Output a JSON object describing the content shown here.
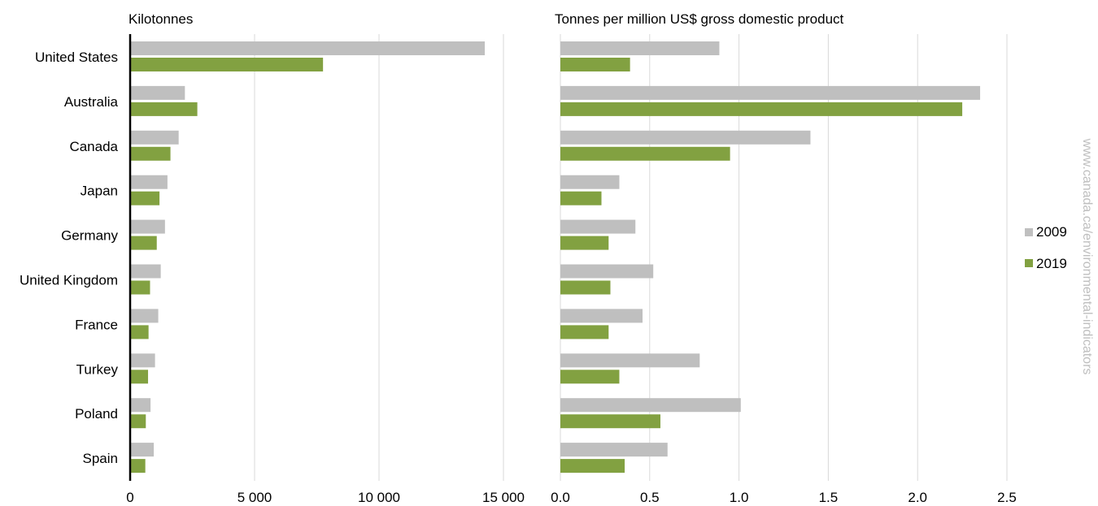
{
  "chart_data": [
    {
      "type": "bar",
      "orientation": "horizontal",
      "title": "Kilotonnes",
      "categories": [
        "United States",
        "Australia",
        "Canada",
        "Japan",
        "Germany",
        "United Kingdom",
        "France",
        "Turkey",
        "Poland",
        "Spain"
      ],
      "series": [
        {
          "name": "2009",
          "values": [
            14250,
            2200,
            1950,
            1500,
            1400,
            1230,
            1130,
            1000,
            820,
            950
          ]
        },
        {
          "name": "2019",
          "values": [
            7750,
            2700,
            1620,
            1180,
            1070,
            800,
            740,
            720,
            630,
            610
          ]
        }
      ],
      "xlim": [
        0,
        15000
      ],
      "xticks": [
        "0",
        "5 000",
        "10 000",
        "15 000"
      ],
      "xtick_values": [
        0,
        5000,
        10000,
        15000
      ],
      "grid": "vertical"
    },
    {
      "type": "bar",
      "orientation": "horizontal",
      "title": "Tonnes per million US$ gross domestic product",
      "categories": [
        "United States",
        "Australia",
        "Canada",
        "Japan",
        "Germany",
        "United Kingdom",
        "France",
        "Turkey",
        "Poland",
        "Spain"
      ],
      "series": [
        {
          "name": "2009",
          "values": [
            0.89,
            2.35,
            1.4,
            0.33,
            0.42,
            0.52,
            0.46,
            0.78,
            1.01,
            0.6
          ]
        },
        {
          "name": "2019",
          "values": [
            0.39,
            2.25,
            0.95,
            0.23,
            0.27,
            0.28,
            0.27,
            0.33,
            0.56,
            0.36
          ]
        }
      ],
      "xlim": [
        0,
        2.5
      ],
      "xticks": [
        "0.0",
        "0.5",
        "1.0",
        "1.5",
        "2.0",
        "2.5"
      ],
      "xtick_values": [
        0,
        0.5,
        1,
        1.5,
        2,
        2.5
      ],
      "grid": "vertical"
    }
  ],
  "legend": {
    "position": "right",
    "items": [
      {
        "label": "2009",
        "color": "#bfbfbf"
      },
      {
        "label": "2019",
        "color": "#82a141"
      }
    ]
  },
  "colors": {
    "series_2009": "#bfbfbf",
    "series_2019": "#82a141",
    "grid": "#d9d9d9",
    "axis": "#000000"
  },
  "source_note": "www.canada.ca/environmental-indicators"
}
